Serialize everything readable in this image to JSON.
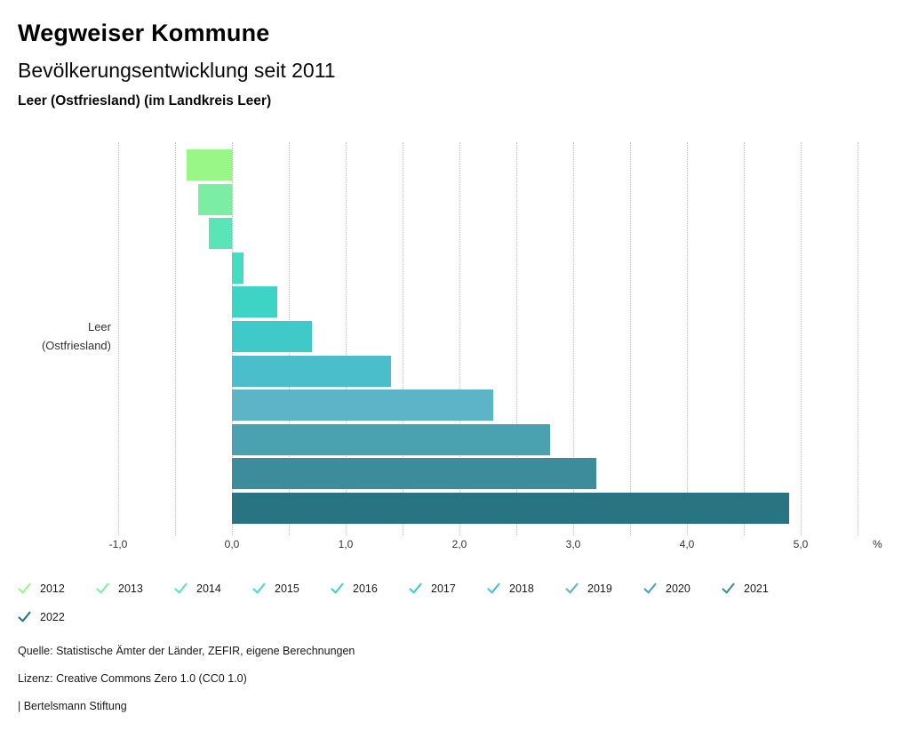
{
  "header": {
    "title": "Wegweiser Kommune",
    "subtitle": "Bevölkerungsentwicklung seit 2011",
    "region": "Leer (Ostfriesland) (im Landkreis Leer)"
  },
  "chart_data": {
    "type": "bar",
    "orientation": "horizontal",
    "title": "Bevölkerungsentwicklung seit 2011",
    "group_label_lines": [
      "Leer",
      "(Ostfriesland)"
    ],
    "categories": [
      "2012",
      "2013",
      "2014",
      "2015",
      "2016",
      "2017",
      "2018",
      "2019",
      "2020",
      "2021",
      "2022"
    ],
    "values": [
      -0.4,
      -0.3,
      -0.2,
      0.1,
      0.4,
      0.7,
      1.4,
      2.3,
      2.8,
      3.2,
      4.9
    ],
    "colors": [
      "#99F788",
      "#7CEEA3",
      "#5BE5B6",
      "#46DCC1",
      "#3DD3C5",
      "#40C9C9",
      "#4BBECB",
      "#5BB5C7",
      "#4AA1B0",
      "#3C8C9C",
      "#297482"
    ],
    "unit": "%",
    "xlabel": "%",
    "ylabel": "",
    "xlim": [
      -1.0,
      5.5
    ],
    "grid_step": 0.5,
    "grid": true,
    "x_ticks": [
      {
        "label": "-1,0",
        "value": -1.0
      },
      {
        "label": "0,0",
        "value": 0.0
      },
      {
        "label": "1,0",
        "value": 1.0
      },
      {
        "label": "2,0",
        "value": 2.0
      },
      {
        "label": "3,0",
        "value": 3.0
      },
      {
        "label": "4,0",
        "value": 4.0
      },
      {
        "label": "5,0",
        "value": 5.0
      }
    ],
    "legend_position": "bottom"
  },
  "footer": {
    "source": "Quelle: Statistische Ämter der Länder, ZEFIR, eigene Berechnungen",
    "license": "Lizenz: Creative Commons Zero 1.0 (CC0 1.0)",
    "brand": "| Bertelsmann Stiftung"
  }
}
